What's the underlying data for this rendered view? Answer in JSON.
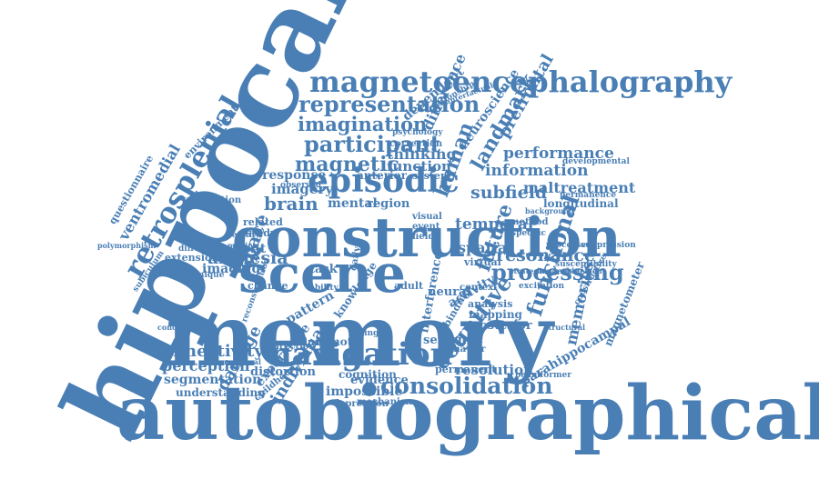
{
  "color": "#4a7fb5",
  "words": [
    {
      "id": "hippocampal",
      "text": "hippocampal"
    },
    {
      "id": "autobiographical",
      "text": "autobiographical"
    },
    {
      "id": "memory",
      "text": "memory"
    },
    {
      "id": "construction",
      "text": "construction"
    },
    {
      "id": "scene",
      "text": "scene"
    },
    {
      "id": "magnetoencephalography",
      "text": "magnetoencephalography"
    },
    {
      "id": "episodic",
      "text": "episodic"
    },
    {
      "id": "navigation",
      "text": "navigation"
    },
    {
      "id": "consolidation",
      "text": "consolidation"
    },
    {
      "id": "retrosplenial",
      "text": "retrosplenial"
    },
    {
      "id": "representation",
      "text": "representation"
    },
    {
      "id": "imagination",
      "text": "imagination"
    },
    {
      "id": "participant",
      "text": "participant"
    },
    {
      "id": "magnetic",
      "text": "magnetic"
    },
    {
      "id": "brain",
      "text": "brain"
    },
    {
      "id": "processing",
      "text": "processing"
    },
    {
      "id": "resonance",
      "text": "resonance"
    },
    {
      "id": "functional",
      "text": "functional"
    },
    {
      "id": "memories",
      "text": "memories"
    },
    {
      "id": "cognitive",
      "text": "cognitive"
    },
    {
      "id": "future",
      "text": "future"
    },
    {
      "id": "human",
      "text": "human"
    },
    {
      "id": "landmark",
      "text": "landmark"
    },
    {
      "id": "prefrontal",
      "text": "prefrontal"
    },
    {
      "id": "performance",
      "text": "performance"
    },
    {
      "id": "information",
      "text": "information"
    },
    {
      "id": "subfield",
      "text": "subfield"
    },
    {
      "id": "maltreatment",
      "text": "maltreatment"
    },
    {
      "id": "longitudinal",
      "text": "longitudinal"
    },
    {
      "id": "permanence",
      "text": "permanence"
    },
    {
      "id": "temporal",
      "text": "temporal"
    },
    {
      "id": "spatial",
      "text": "spatial"
    },
    {
      "id": "connectivity",
      "text": "connectivity"
    },
    {
      "id": "perception",
      "text": "perception"
    },
    {
      "id": "segmentation",
      "text": "segmentation"
    },
    {
      "id": "understanding",
      "text": "understanding"
    },
    {
      "id": "damage",
      "text": "damage"
    },
    {
      "id": "distortion",
      "text": "distortion"
    },
    {
      "id": "individual",
      "text": "individual"
    },
    {
      "id": "ventromedial",
      "text": "ventromedial"
    },
    {
      "id": "questionnaire",
      "text": "questionnaire"
    },
    {
      "id": "environment",
      "text": "environment"
    },
    {
      "id": "amnesia",
      "text": "amnesia"
    },
    {
      "id": "patient",
      "text": "patient"
    },
    {
      "id": "imaging",
      "text": "imaging"
    },
    {
      "id": "space",
      "text": "space"
    },
    {
      "id": "thinking",
      "text": "thinking"
    },
    {
      "id": "function",
      "text": "function"
    },
    {
      "id": "response",
      "text": "response"
    },
    {
      "id": "imagery",
      "text": "imagery"
    },
    {
      "id": "mental",
      "text": "mental"
    },
    {
      "id": "region",
      "text": "region"
    },
    {
      "id": "resolution",
      "text": "resolution"
    },
    {
      "id": "parahippocampal",
      "text": "parahippocampal"
    },
    {
      "id": "magnetometer",
      "text": "magnetometer"
    },
    {
      "id": "impossible",
      "text": "impossible"
    },
    {
      "id": "evidence",
      "text": "evidence"
    },
    {
      "id": "semantic",
      "text": "semantic"
    },
    {
      "id": "posterior",
      "text": "posterior"
    },
    {
      "id": "mapping",
      "text": "mapping"
    },
    {
      "id": "analysis",
      "text": "analysis"
    },
    {
      "id": "activity",
      "text": "activity"
    },
    {
      "id": "neural",
      "text": "neural"
    },
    {
      "id": "task",
      "text": "task"
    },
    {
      "id": "pattern",
      "text": "pattern"
    },
    {
      "id": "volume",
      "text": "volume"
    },
    {
      "id": "remote",
      "text": "remote"
    },
    {
      "id": "direction",
      "text": "direction"
    },
    {
      "id": "experience",
      "text": "experience"
    },
    {
      "id": "childhood",
      "text": "childhood"
    },
    {
      "id": "cognition",
      "text": "cognition"
    },
    {
      "id": "mechanism",
      "text": "mechanism"
    },
    {
      "id": "permanent",
      "text": "permanent"
    },
    {
      "id": "difference",
      "text": "difference"
    },
    {
      "id": "dependent",
      "text": "dependent"
    },
    {
      "id": "neuroscience",
      "text": "neuroscience"
    },
    {
      "id": "anterior",
      "text": "anterior"
    },
    {
      "id": "system",
      "text": "system"
    },
    {
      "id": "correction",
      "text": "correction"
    },
    {
      "id": "related",
      "text": "related"
    },
    {
      "id": "study",
      "text": "study"
    },
    {
      "id": "extension",
      "text": "extension"
    },
    {
      "id": "association",
      "text": "association"
    },
    {
      "id": "visual",
      "text": "visual"
    },
    {
      "id": "event",
      "text": "event"
    },
    {
      "id": "field",
      "text": "field"
    },
    {
      "id": "method",
      "text": "method"
    },
    {
      "id": "specific",
      "text": "specific"
    },
    {
      "id": "virtual",
      "text": "virtual"
    },
    {
      "id": "context",
      "text": "context"
    },
    {
      "id": "adult",
      "text": "adult"
    },
    {
      "id": "knowledge",
      "text": "knowledge"
    },
    {
      "id": "interference",
      "text": "interference"
    },
    {
      "id": "binding",
      "text": "binding"
    },
    {
      "id": "behavior",
      "text": "behavior"
    },
    {
      "id": "change",
      "text": "change"
    },
    {
      "id": "depression",
      "text": "depression"
    },
    {
      "id": "developmental",
      "text": "developmental"
    },
    {
      "id": "susceptibility",
      "text": "susceptibility"
    },
    {
      "id": "suppression",
      "text": "suppression"
    },
    {
      "id": "processes",
      "text": "processes"
    },
    {
      "id": "background",
      "text": "background"
    },
    {
      "id": "daily",
      "text": "daily"
    },
    {
      "id": "beamformer",
      "text": "beamformer"
    },
    {
      "id": "subiculum",
      "text": "subiculum"
    },
    {
      "id": "polymorphism",
      "text": "polymorphism"
    },
    {
      "id": "diffusion",
      "text": "diffusion"
    },
    {
      "id": "technique",
      "text": "technique"
    },
    {
      "id": "healthy",
      "text": "healthy"
    },
    {
      "id": "making",
      "text": "making"
    },
    {
      "id": "psychology",
      "text": "psychology"
    },
    {
      "id": "relationship",
      "text": "relationship"
    },
    {
      "id": "observed",
      "text": "observed"
    },
    {
      "id": "counterfactual",
      "text": "counterfactual"
    },
    {
      "id": "excitation",
      "text": "excitation"
    },
    {
      "id": "constructive",
      "text": "constructive"
    },
    {
      "id": "imageable",
      "text": "imageable"
    },
    {
      "id": "strategies",
      "text": "strategies"
    },
    {
      "id": "engagement",
      "text": "engagement"
    },
    {
      "id": "reconstruction",
      "text": "reconstruction"
    },
    {
      "id": "conduction",
      "text": "conduction"
    },
    {
      "id": "dimensional",
      "text": "dimensional"
    },
    {
      "id": "structural",
      "text": "structural"
    },
    {
      "id": "single",
      "text": "single"
    },
    {
      "id": "ability",
      "text": "ability"
    }
  ]
}
